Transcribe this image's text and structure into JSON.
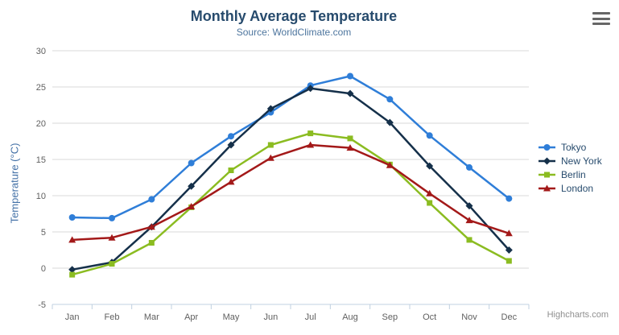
{
  "chart_data": {
    "type": "line",
    "title": "Monthly Average Temperature",
    "subtitle": "Source: WorldClimate.com",
    "xlabel": "",
    "ylabel": "Temperature (°C)",
    "categories": [
      "Jan",
      "Feb",
      "Mar",
      "Apr",
      "May",
      "Jun",
      "Jul",
      "Aug",
      "Sep",
      "Oct",
      "Nov",
      "Dec"
    ],
    "series": [
      {
        "name": "Tokyo",
        "color": "#2f7ed8",
        "marker": "circle",
        "values": [
          7.0,
          6.9,
          9.5,
          14.5,
          18.2,
          21.5,
          25.2,
          26.5,
          23.3,
          18.3,
          13.9,
          9.6
        ]
      },
      {
        "name": "New York",
        "color": "#15304a",
        "marker": "diamond",
        "values": [
          -0.2,
          0.8,
          5.7,
          11.3,
          17.0,
          22.0,
          24.8,
          24.1,
          20.1,
          14.1,
          8.6,
          2.5
        ]
      },
      {
        "name": "Berlin",
        "color": "#8bbc21",
        "marker": "square",
        "values": [
          -0.9,
          0.6,
          3.5,
          8.4,
          13.5,
          17.0,
          18.6,
          17.9,
          14.3,
          9.0,
          3.9,
          1.0
        ]
      },
      {
        "name": "London",
        "color": "#a31919",
        "marker": "triangle",
        "values": [
          3.9,
          4.2,
          5.7,
          8.5,
          11.9,
          15.2,
          17.0,
          16.6,
          14.2,
          10.3,
          6.6,
          4.8
        ]
      }
    ],
    "ylim": [
      -5,
      30
    ],
    "yticks": [
      -5,
      0,
      5,
      10,
      15,
      20,
      25,
      30
    ],
    "grid": true,
    "legend_position": "right",
    "credits": "Highcharts.com",
    "colors": {
      "grid": "#d8d8d8",
      "axis_line": "#c0d0e0",
      "tick_label": "#606060",
      "title": "#274b6d",
      "subtitle": "#4d759e",
      "y_axis_title": "#4572a7",
      "legend_text": "#274b6d",
      "credits": "#8f8f8f"
    },
    "icons": {
      "export_menu": "hamburger-icon"
    }
  }
}
